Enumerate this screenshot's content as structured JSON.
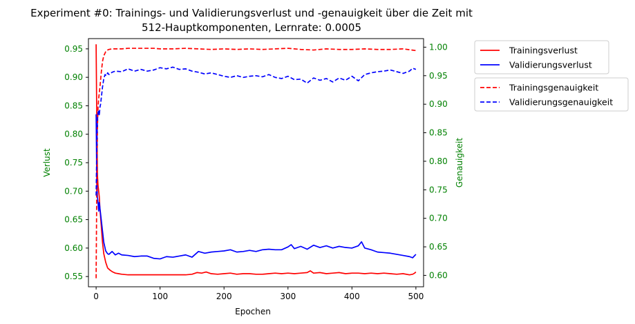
{
  "chart_data": {
    "type": "line",
    "title_line1": "Experiment #0: Trainings- und Validierungsverlust und -genauigkeit über die Zeit mit",
    "title_line2": "512-Hauptkomponenten, Lernrate: 0.0005",
    "xlabel": "Epochen",
    "ylabel_left": "Verlust",
    "ylabel_right": "Genauigkeit",
    "xlim": [
      -12,
      512
    ],
    "ylim_left": [
      0.532,
      0.968
    ],
    "ylim_right": [
      0.58,
      1.015
    ],
    "x_ticks": [
      0,
      100,
      200,
      300,
      400,
      500
    ],
    "y_ticks_left": [
      "0.55",
      "0.60",
      "0.65",
      "0.70",
      "0.75",
      "0.80",
      "0.85",
      "0.90",
      "0.95"
    ],
    "y_ticks_right": [
      "0.60",
      "0.65",
      "0.70",
      "0.75",
      "0.80",
      "0.85",
      "0.90",
      "0.95",
      "1.00"
    ],
    "tick_label_color": "#008000",
    "axis_label_color": "#008000",
    "grid": false,
    "legend_loss_placement": "outside-top-right",
    "legend_acc_placement": "outside-top-right-below",
    "series": [
      {
        "name": "Trainingsverlust",
        "axis": "left",
        "color": "#ff0000",
        "dash": "solid",
        "x": [
          0,
          1,
          2,
          3,
          4,
          5,
          6,
          8,
          10,
          12,
          15,
          18,
          22,
          26,
          30,
          35,
          40,
          50,
          60,
          70,
          80,
          90,
          100,
          110,
          120,
          130,
          140,
          150,
          158,
          165,
          172,
          180,
          190,
          200,
          210,
          220,
          230,
          240,
          250,
          260,
          270,
          280,
          290,
          300,
          310,
          320,
          330,
          335,
          340,
          350,
          360,
          370,
          380,
          390,
          400,
          410,
          420,
          430,
          440,
          450,
          460,
          470,
          480,
          490,
          495,
          498,
          500
        ],
        "y": [
          0.958,
          0.83,
          0.73,
          0.71,
          0.7,
          0.69,
          0.668,
          0.64,
          0.61,
          0.59,
          0.575,
          0.565,
          0.561,
          0.558,
          0.556,
          0.555,
          0.554,
          0.553,
          0.553,
          0.553,
          0.553,
          0.553,
          0.553,
          0.553,
          0.553,
          0.553,
          0.553,
          0.554,
          0.557,
          0.556,
          0.558,
          0.555,
          0.554,
          0.555,
          0.556,
          0.554,
          0.555,
          0.555,
          0.554,
          0.554,
          0.555,
          0.556,
          0.555,
          0.556,
          0.555,
          0.556,
          0.557,
          0.56,
          0.556,
          0.557,
          0.555,
          0.556,
          0.557,
          0.555,
          0.556,
          0.556,
          0.555,
          0.556,
          0.555,
          0.556,
          0.555,
          0.554,
          0.555,
          0.553,
          0.554,
          0.556,
          0.558
        ]
      },
      {
        "name": "Validierungsverlust",
        "axis": "left",
        "color": "#0000ff",
        "dash": "solid",
        "x": [
          0,
          1,
          2,
          3,
          4,
          5,
          6,
          7,
          8,
          10,
          12,
          15,
          18,
          20,
          25,
          30,
          35,
          40,
          50,
          60,
          70,
          80,
          90,
          100,
          110,
          120,
          130,
          140,
          150,
          160,
          170,
          180,
          190,
          200,
          210,
          220,
          230,
          240,
          250,
          260,
          270,
          280,
          290,
          300,
          305,
          310,
          320,
          330,
          340,
          350,
          360,
          370,
          380,
          390,
          400,
          410,
          415,
          420,
          430,
          440,
          450,
          460,
          470,
          480,
          490,
          495,
          500
        ],
        "y": [
          0.835,
          0.72,
          0.69,
          0.68,
          0.665,
          0.68,
          0.67,
          0.66,
          0.65,
          0.63,
          0.61,
          0.595,
          0.59,
          0.589,
          0.594,
          0.588,
          0.591,
          0.588,
          0.587,
          0.585,
          0.586,
          0.586,
          0.582,
          0.581,
          0.585,
          0.584,
          0.586,
          0.588,
          0.584,
          0.594,
          0.591,
          0.593,
          0.594,
          0.595,
          0.597,
          0.593,
          0.594,
          0.596,
          0.594,
          0.597,
          0.598,
          0.597,
          0.597,
          0.602,
          0.606,
          0.599,
          0.603,
          0.598,
          0.605,
          0.601,
          0.604,
          0.6,
          0.603,
          0.601,
          0.6,
          0.604,
          0.611,
          0.6,
          0.597,
          0.593,
          0.592,
          0.591,
          0.589,
          0.587,
          0.585,
          0.583,
          0.589
        ]
      },
      {
        "name": "Trainingsgenauigkeit",
        "axis": "right",
        "color": "#ff0000",
        "dash": "dashed",
        "x": [
          0,
          1,
          2,
          3,
          4,
          5,
          6,
          8,
          10,
          12,
          15,
          18,
          20,
          25,
          30,
          40,
          50,
          60,
          70,
          80,
          90,
          100,
          120,
          140,
          160,
          180,
          200,
          220,
          240,
          260,
          280,
          300,
          320,
          340,
          360,
          380,
          400,
          420,
          440,
          460,
          480,
          500
        ],
        "y": [
          0.595,
          0.75,
          0.855,
          0.895,
          0.91,
          0.92,
          0.93,
          0.955,
          0.975,
          0.985,
          0.992,
          0.995,
          0.996,
          0.997,
          0.997,
          0.997,
          0.998,
          0.998,
          0.998,
          0.998,
          0.998,
          0.997,
          0.997,
          0.998,
          0.997,
          0.996,
          0.997,
          0.996,
          0.997,
          0.996,
          0.997,
          0.998,
          0.996,
          0.995,
          0.997,
          0.996,
          0.996,
          0.997,
          0.996,
          0.996,
          0.997,
          0.994
        ]
      },
      {
        "name": "Validierungsgenauigkeit",
        "axis": "right",
        "color": "#0000ff",
        "dash": "dashed",
        "x": [
          0,
          1,
          2,
          3,
          4,
          5,
          6,
          7,
          8,
          10,
          12,
          14,
          16,
          18,
          20,
          25,
          30,
          40,
          50,
          60,
          70,
          80,
          90,
          100,
          110,
          120,
          130,
          140,
          150,
          160,
          170,
          180,
          190,
          200,
          210,
          220,
          230,
          240,
          250,
          260,
          270,
          280,
          290,
          300,
          310,
          320,
          330,
          340,
          350,
          360,
          370,
          380,
          390,
          400,
          410,
          420,
          430,
          440,
          450,
          460,
          470,
          480,
          490,
          495,
          500
        ],
        "y": [
          0.74,
          0.82,
          0.87,
          0.885,
          0.89,
          0.88,
          0.895,
          0.9,
          0.91,
          0.93,
          0.945,
          0.952,
          0.95,
          0.955,
          0.952,
          0.956,
          0.958,
          0.957,
          0.962,
          0.958,
          0.961,
          0.958,
          0.96,
          0.964,
          0.962,
          0.965,
          0.961,
          0.962,
          0.958,
          0.956,
          0.953,
          0.955,
          0.952,
          0.949,
          0.947,
          0.95,
          0.947,
          0.949,
          0.95,
          0.948,
          0.952,
          0.947,
          0.945,
          0.949,
          0.943,
          0.944,
          0.937,
          0.946,
          0.942,
          0.945,
          0.939,
          0.946,
          0.942,
          0.949,
          0.941,
          0.952,
          0.955,
          0.957,
          0.958,
          0.96,
          0.957,
          0.954,
          0.958,
          0.963,
          0.961
        ]
      }
    ]
  }
}
